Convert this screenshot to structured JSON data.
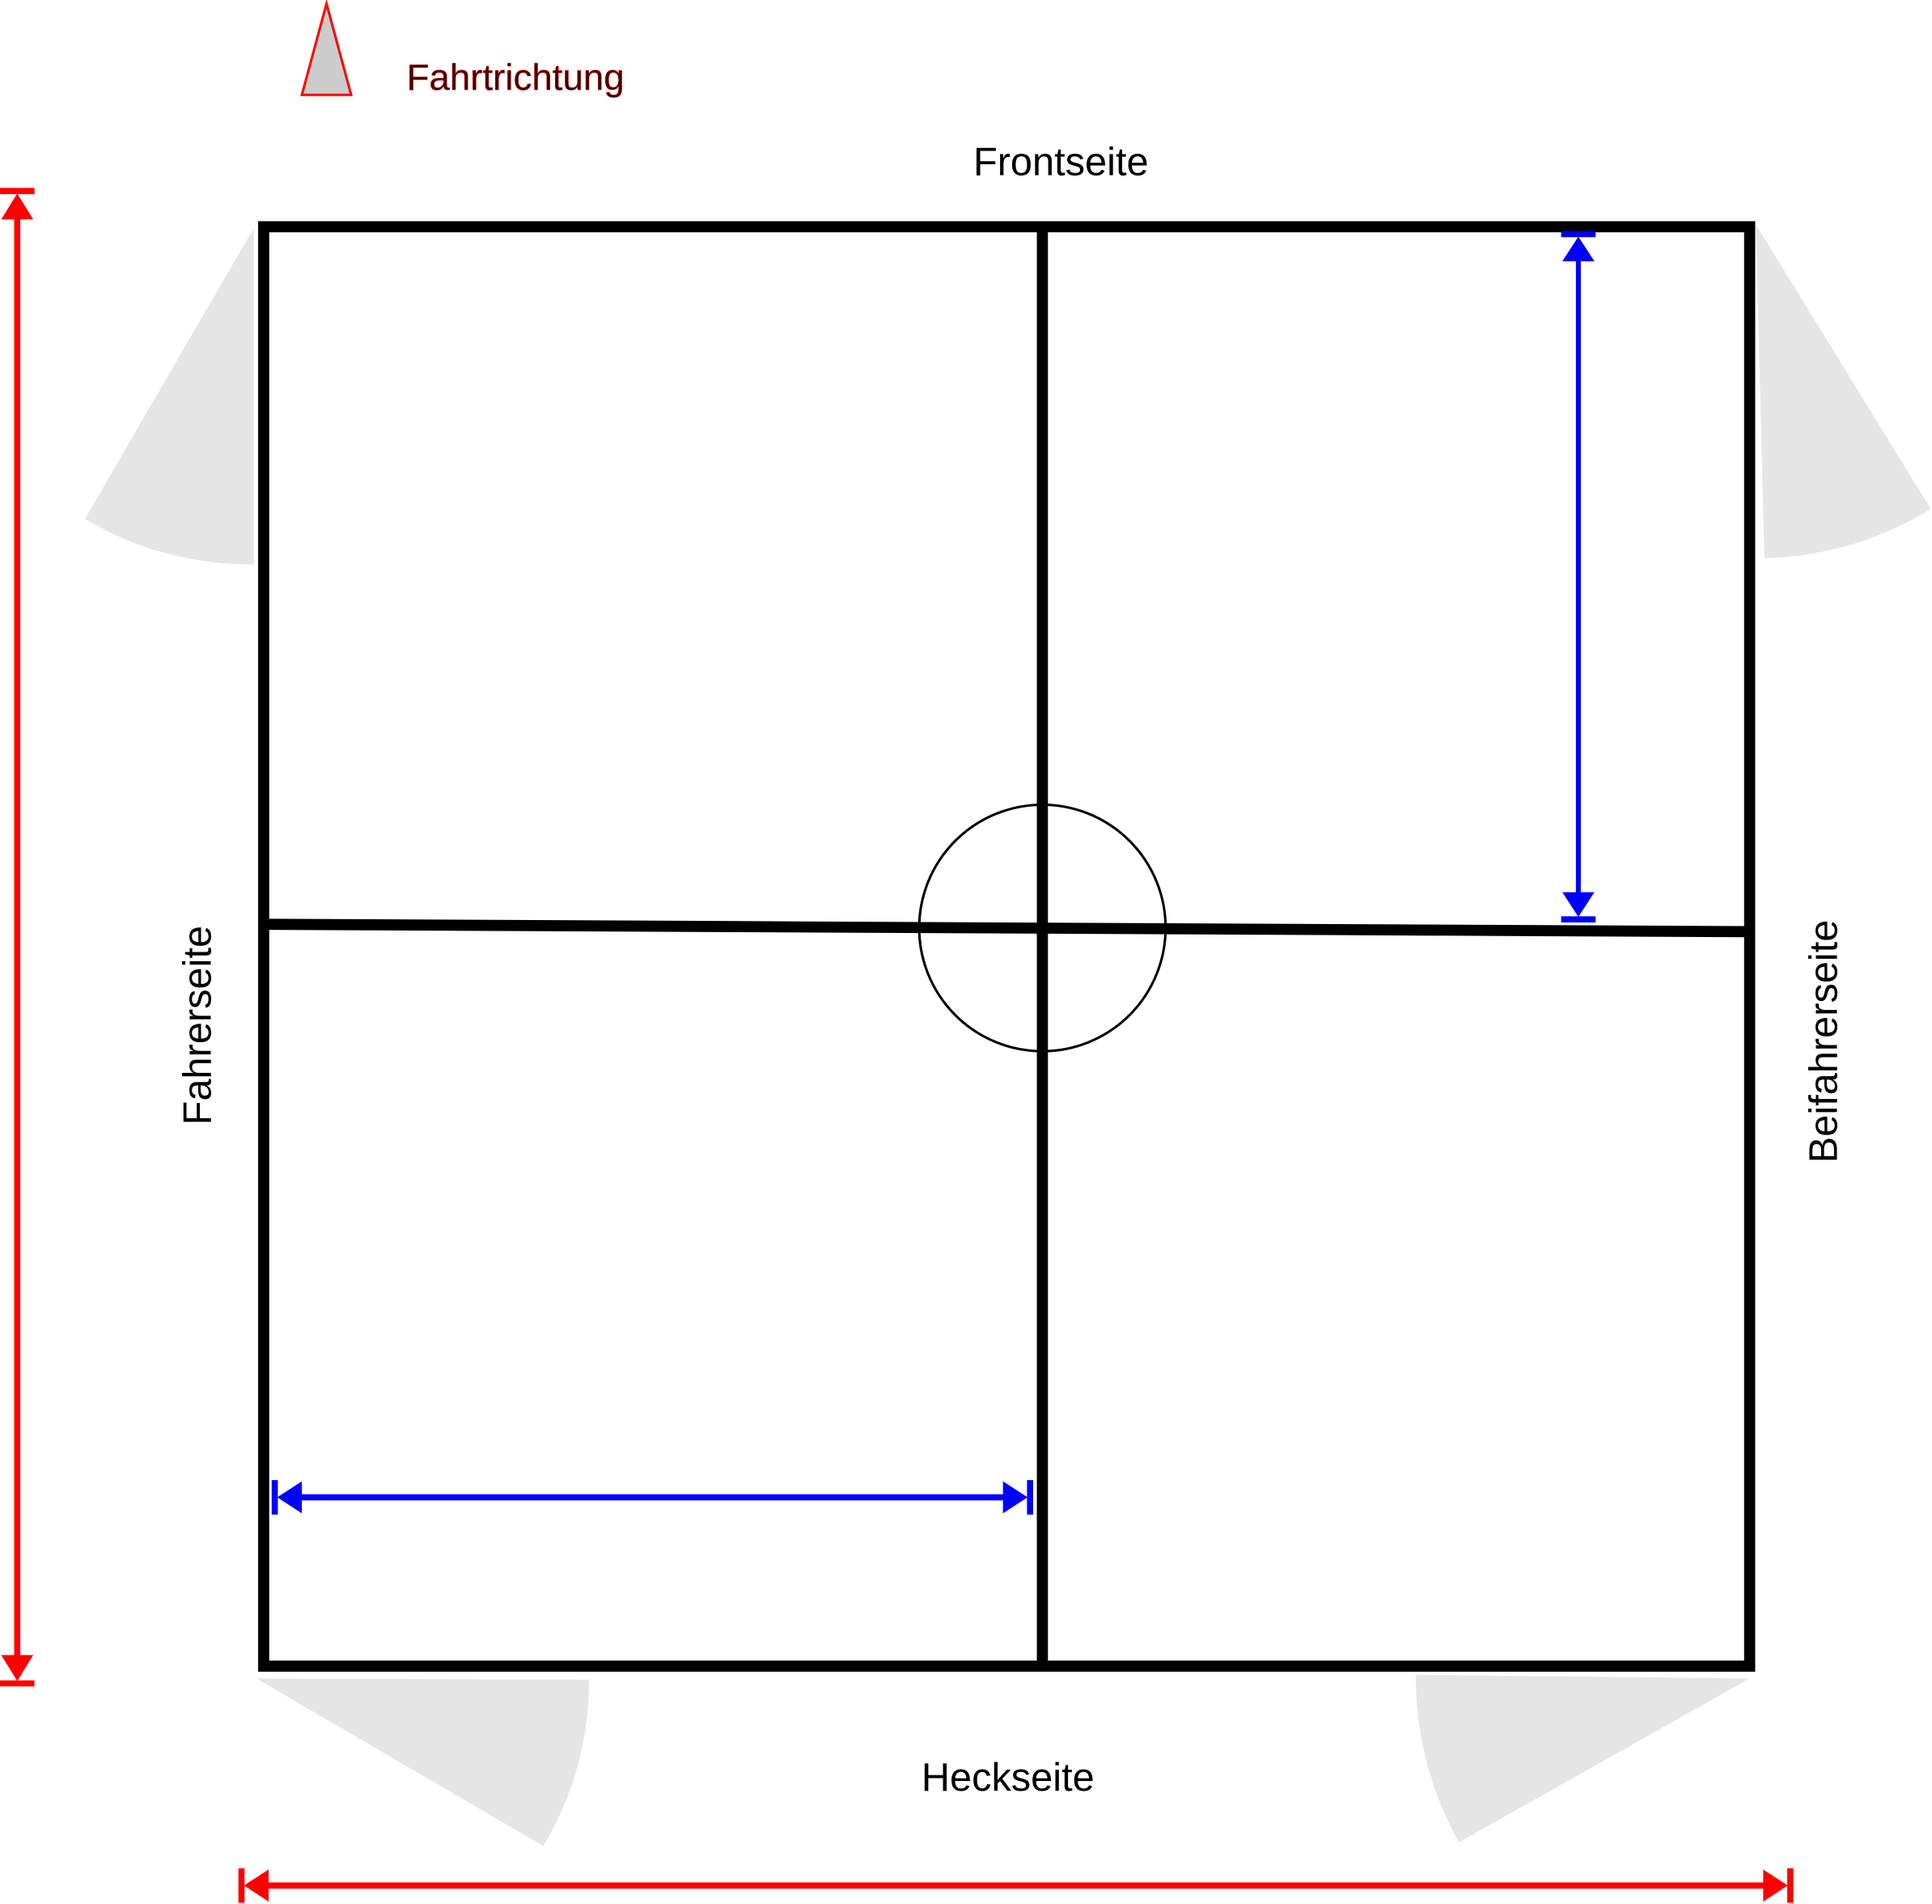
{
  "legend": {
    "direction_label": "Fahrtrichtung",
    "direction_icon": "triangle-arrow-icon"
  },
  "sides": {
    "front": "Frontseite",
    "rear": "Heckseite",
    "driver": "Fahrerseite",
    "passenger": "Beifahrerseite"
  },
  "colors": {
    "outline": "#000000",
    "overall_dimension": "#ff0000",
    "inner_dimension": "#0000ff",
    "door_sweep": "#e5e5e5",
    "direction_fill": "#cccccc",
    "direction_text": "#3f0000"
  }
}
